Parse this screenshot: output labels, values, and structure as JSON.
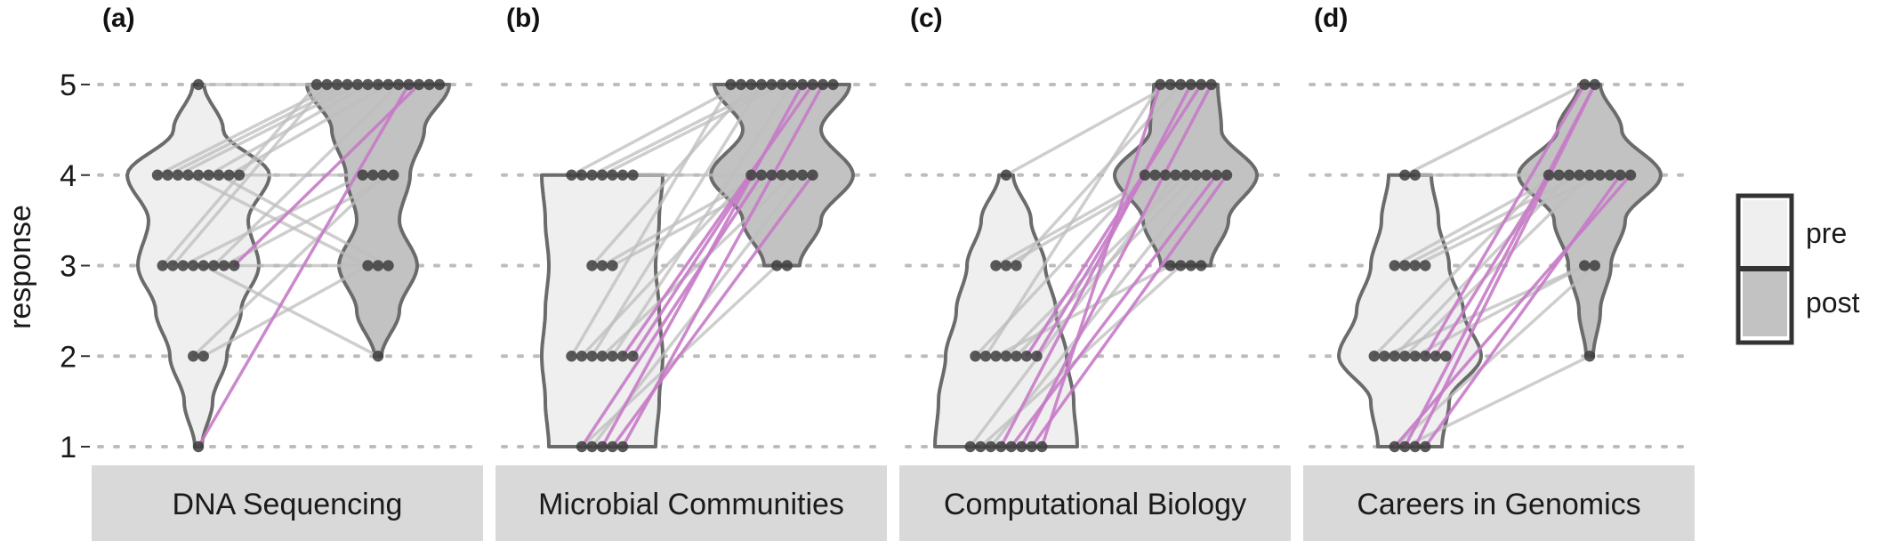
{
  "chart_data": {
    "type": "violin",
    "ylabel": "response",
    "y_ticks": [
      "1",
      "2",
      "3",
      "4",
      "5"
    ],
    "ylim": [
      1,
      5
    ],
    "grid": "horizontal dotted",
    "legend": {
      "placement": "right",
      "entries": [
        {
          "label": "pre",
          "color": "#efefef"
        },
        {
          "label": "post",
          "color": "#c2c2c2"
        }
      ]
    },
    "colors": {
      "pre_fill": "#efefef",
      "post_fill": "#c2c2c2",
      "outline": "#6b6b6b",
      "dot": "#3d3d3d",
      "line_gray": "#bdbdbd",
      "line_magenta": "#c77bc7",
      "grid": "#bdbdbd",
      "strip": "#d9d9d9"
    },
    "panels": [
      {
        "letter": "(a)",
        "title": "DNA Sequencing",
        "pre_counts": {
          "1": 1,
          "2": 2,
          "3": 8,
          "4": 9,
          "5": 1
        },
        "post_counts": {
          "2": 1,
          "3": 3,
          "4": 4,
          "5": 13
        },
        "pre_density": [
          [
            1.0,
            0.05
          ],
          [
            1.5,
            0.2
          ],
          [
            2.0,
            0.4
          ],
          [
            2.5,
            0.6
          ],
          [
            3.0,
            0.85
          ],
          [
            3.5,
            0.7
          ],
          [
            4.0,
            1.0
          ],
          [
            4.5,
            0.35
          ],
          [
            5.0,
            0.08
          ]
        ],
        "post_density": [
          [
            2.0,
            0.05
          ],
          [
            2.5,
            0.3
          ],
          [
            3.0,
            0.55
          ],
          [
            3.5,
            0.3
          ],
          [
            4.0,
            0.45
          ],
          [
            4.5,
            0.65
          ],
          [
            5.0,
            1.0
          ]
        ],
        "pairs_gray": [
          [
            3,
            5
          ],
          [
            3,
            5
          ],
          [
            4,
            5
          ],
          [
            4,
            5
          ],
          [
            3,
            4
          ],
          [
            4,
            5
          ],
          [
            4,
            3
          ],
          [
            3,
            3
          ],
          [
            4,
            4
          ],
          [
            2,
            4
          ],
          [
            4,
            5
          ],
          [
            3,
            2
          ],
          [
            4,
            3
          ],
          [
            5,
            5
          ],
          [
            4,
            5
          ],
          [
            3,
            5
          ],
          [
            2,
            3
          ],
          [
            3,
            4
          ]
        ],
        "pairs_magenta": [
          [
            1,
            5
          ],
          [
            3,
            5
          ]
        ]
      },
      {
        "letter": "(b)",
        "title": "Microbial Communities",
        "pre_counts": {
          "1": 5,
          "2": 7,
          "3": 3,
          "4": 7
        },
        "post_counts": {
          "3": 2,
          "4": 7,
          "5": 11
        },
        "pre_density": [
          [
            1.0,
            0.75
          ],
          [
            1.5,
            0.8
          ],
          [
            2.0,
            0.85
          ],
          [
            2.5,
            0.8
          ],
          [
            3.0,
            0.75
          ],
          [
            3.5,
            0.8
          ],
          [
            4.0,
            0.85
          ]
        ],
        "post_density": [
          [
            3.0,
            0.25
          ],
          [
            3.5,
            0.55
          ],
          [
            4.0,
            1.0
          ],
          [
            4.5,
            0.55
          ],
          [
            5.0,
            0.95
          ]
        ],
        "pairs_gray": [
          [
            2,
            5
          ],
          [
            2,
            4
          ],
          [
            4,
            5
          ],
          [
            3,
            5
          ],
          [
            3,
            4
          ],
          [
            2,
            5
          ],
          [
            4,
            4
          ],
          [
            4,
            5
          ],
          [
            3,
            4
          ],
          [
            2,
            4
          ],
          [
            1,
            3
          ],
          [
            4,
            5
          ],
          [
            2,
            5
          ],
          [
            1,
            4
          ]
        ],
        "pairs_magenta": [
          [
            1,
            5
          ],
          [
            1,
            4
          ],
          [
            2,
            5
          ],
          [
            1,
            5
          ],
          [
            2,
            4
          ],
          [
            1,
            4
          ]
        ]
      },
      {
        "letter": "(c)",
        "title": "Computational Biology",
        "pre_counts": {
          "1": 8,
          "2": 7,
          "3": 3,
          "4": 1
        },
        "post_counts": {
          "3": 4,
          "4": 9,
          "5": 6
        },
        "pre_density": [
          [
            1.0,
            1.0
          ],
          [
            1.5,
            0.95
          ],
          [
            2.0,
            0.85
          ],
          [
            2.5,
            0.7
          ],
          [
            3.0,
            0.55
          ],
          [
            3.5,
            0.35
          ],
          [
            4.0,
            0.1
          ]
        ],
        "post_density": [
          [
            3.0,
            0.35
          ],
          [
            3.5,
            0.6
          ],
          [
            4.0,
            1.0
          ],
          [
            4.5,
            0.5
          ],
          [
            5.0,
            0.45
          ]
        ],
        "pairs_gray": [
          [
            2,
            4
          ],
          [
            3,
            4
          ],
          [
            2,
            5
          ],
          [
            3,
            4
          ],
          [
            1,
            4
          ],
          [
            2,
            3
          ],
          [
            4,
            5
          ],
          [
            2,
            4
          ],
          [
            1,
            3
          ],
          [
            2,
            4
          ],
          [
            3,
            5
          ],
          [
            1,
            4
          ]
        ],
        "pairs_magenta": [
          [
            1,
            5
          ],
          [
            1,
            4
          ],
          [
            2,
            5
          ],
          [
            1,
            5
          ],
          [
            1,
            4
          ],
          [
            2,
            4
          ],
          [
            1,
            5
          ]
        ]
      },
      {
        "letter": "(d)",
        "title": "Careers in Genomics",
        "pre_counts": {
          "1": 4,
          "2": 8,
          "3": 4,
          "4": 2
        },
        "post_counts": {
          "2": 1,
          "3": 2,
          "4": 9,
          "5": 2
        },
        "pre_density": [
          [
            1.0,
            0.45
          ],
          [
            1.5,
            0.55
          ],
          [
            2.0,
            1.0
          ],
          [
            2.5,
            0.75
          ],
          [
            3.0,
            0.55
          ],
          [
            3.5,
            0.4
          ],
          [
            4.0,
            0.3
          ]
        ],
        "post_density": [
          [
            2.0,
            0.05
          ],
          [
            2.5,
            0.15
          ],
          [
            3.0,
            0.3
          ],
          [
            3.5,
            0.5
          ],
          [
            4.0,
            1.0
          ],
          [
            4.5,
            0.45
          ],
          [
            5.0,
            0.15
          ]
        ],
        "pairs_gray": [
          [
            2,
            4
          ],
          [
            3,
            4
          ],
          [
            2,
            3
          ],
          [
            4,
            5
          ],
          [
            2,
            4
          ],
          [
            3,
            4
          ],
          [
            1,
            3
          ],
          [
            2,
            4
          ],
          [
            3,
            4
          ],
          [
            2,
            3
          ],
          [
            1,
            2
          ],
          [
            4,
            4
          ]
        ],
        "pairs_magenta": [
          [
            1,
            5
          ],
          [
            1,
            4
          ],
          [
            2,
            5
          ],
          [
            1,
            4
          ],
          [
            1,
            5
          ],
          [
            2,
            4
          ]
        ]
      }
    ]
  }
}
